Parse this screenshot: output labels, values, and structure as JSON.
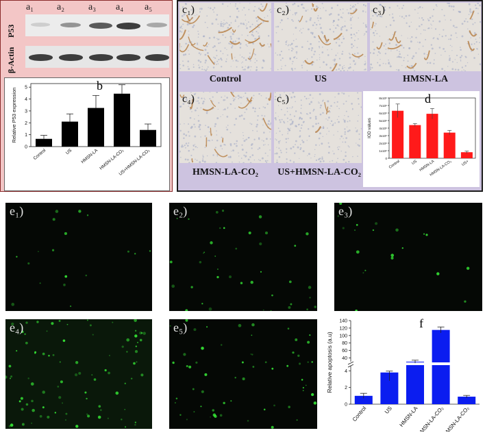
{
  "panel_a": {
    "lane_labels": [
      "a₁",
      "a₂",
      "a₃",
      "a₄",
      "a₅"
    ],
    "row_labels": {
      "p53": "P53",
      "actin": "β-Actin"
    },
    "p53_band_intensity": [
      0.15,
      0.45,
      0.75,
      0.9,
      0.35
    ],
    "actin_band_intensity": [
      0.9,
      0.9,
      0.9,
      0.9,
      0.9
    ]
  },
  "panel_b_label": "b",
  "panel_c": {
    "sublabels": [
      "c₁)",
      "c₂)",
      "c₃)",
      "c₄)",
      "c₅)"
    ],
    "captions": [
      "Control",
      "US",
      "HMSN-LA",
      "HMSN-LA-CO₂",
      "US+HMSN-LA-CO₂"
    ]
  },
  "panel_d_label": "d",
  "panel_e": {
    "sublabels": [
      "e₁)",
      "e₂)",
      "e₃)",
      "e₄)",
      "e₅)"
    ]
  },
  "panel_f_label": "f",
  "colors": {
    "bar_b": "#000000",
    "bar_d": "#ff1a1a",
    "bar_f": "#0b1df0",
    "blot_band": "#2a2a2a",
    "stain": "#b8824a",
    "fluor_dot": "#3bff3b"
  },
  "chart_data": [
    {
      "id": "b",
      "type": "bar",
      "categories": [
        "Control",
        "US",
        "HMSN-LA",
        "HMSN-LA-CO₂",
        "US+HMSN-LA-CO₂"
      ],
      "values": [
        0.65,
        2.1,
        3.25,
        4.45,
        1.4
      ],
      "errors": [
        0.3,
        0.65,
        1.05,
        0.75,
        0.5
      ],
      "ylabel": "Relative P53 expression",
      "ylim": [
        0,
        5.3
      ],
      "yticks": [
        "0",
        "1",
        "2",
        "3",
        "4",
        "5"
      ]
    },
    {
      "id": "d",
      "type": "bar",
      "categories": [
        "Control",
        "US",
        "HMSN-LA",
        "HMSN-LA-CO₂",
        "US+"
      ],
      "values": [
        6.3,
        4.4,
        5.9,
        3.4,
        0.8
      ],
      "errors": [
        0.9,
        0.2,
        0.7,
        0.3,
        0.15
      ],
      "ylabel": "IOD values",
      "ylim": [
        0,
        8
      ],
      "yticks": [
        "0",
        "1x10⁶",
        "2x10⁶",
        "3x10⁶",
        "4x10⁶",
        "5x10⁶",
        "6x10⁶",
        "7x10⁶",
        "8x10⁶"
      ]
    },
    {
      "id": "f",
      "type": "bar",
      "categories": [
        "Control",
        "US",
        "HMSN-LA",
        "HMSN-LA-CO₂",
        "US+HMSN-LA-CO₂"
      ],
      "values": [
        1.0,
        3.8,
        30,
        115,
        0.9
      ],
      "errors": [
        0.3,
        1.0,
        4,
        8,
        0.15
      ],
      "ylabel": "Relative apoptosis (a.u)",
      "yticks_low": [
        "0",
        "2",
        "4"
      ],
      "yticks_high": [
        "40",
        "60",
        "80",
        "100",
        "120",
        "140"
      ]
    }
  ]
}
